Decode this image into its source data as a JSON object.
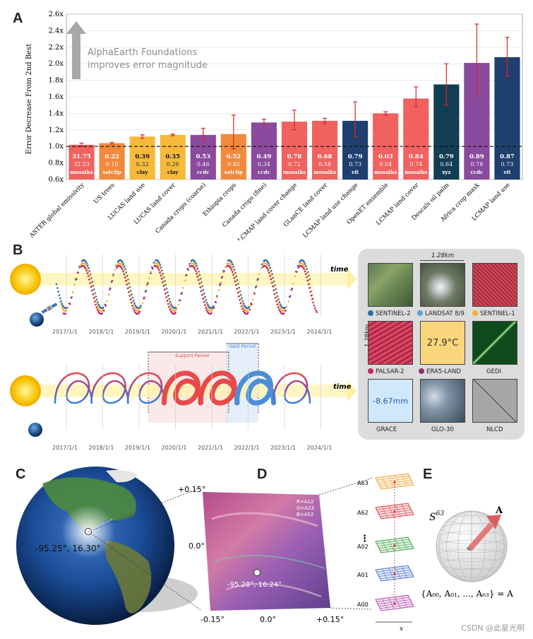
{
  "panels": {
    "a": "A",
    "b": "B",
    "c": "C",
    "d": "D",
    "e": "E"
  },
  "chart_data": {
    "type": "bar",
    "ylabel": "Error Decrease From 2nd Best",
    "ylim": [
      0.6,
      2.6
    ],
    "yticks": [
      "0.6x",
      "0.8x",
      "1.0x",
      "1.2x",
      "1.4x",
      "1.6x",
      "1.8x",
      "2.0x",
      "2.2x",
      "2.4x",
      "2.6x"
    ],
    "reference_line": 1.0,
    "annotation": [
      "AlphaEarth Foundations",
      "improves error magnitude"
    ],
    "categories": [
      "ASTER global emissivity",
      "US trees",
      "LUCAS land use",
      "LUCAS land cover",
      "Canada crops (coarse)",
      "Ethiopia crops",
      "Canada crops (fine)",
      "LCMAP land cover change",
      "GLanCE land cover",
      "LCMAP land use change",
      "OpenET ensemble",
      "LCMAP land cover",
      "Descals oil palm",
      "Africa crop mask",
      "LCMAP land use"
    ],
    "values": [
      1.02,
      1.04,
      1.12,
      1.14,
      1.14,
      1.15,
      1.29,
      1.3,
      1.31,
      1.31,
      1.4,
      1.58,
      1.75,
      2.01,
      2.08
    ],
    "error_low": [
      1.0,
      1.03,
      1.1,
      1.13,
      1.08,
      0.97,
      1.26,
      1.2,
      1.28,
      1.12,
      1.38,
      1.48,
      1.5,
      1.61,
      1.85
    ],
    "error_high": [
      1.04,
      1.05,
      1.14,
      1.15,
      1.22,
      1.38,
      1.33,
      1.44,
      1.34,
      1.54,
      1.42,
      1.72,
      2.0,
      2.48,
      2.32
    ],
    "bar_colors": [
      "#ef6260",
      "#f08a3c",
      "#f6b93b",
      "#f6b93b",
      "#8a4a9e",
      "#f08a3c",
      "#8a4a9e",
      "#ef6260",
      "#ef6260",
      "#1f3f6e",
      "#ef6260",
      "#ef6260",
      "#123d52",
      "#8a4a9e",
      "#1f3f6e"
    ],
    "labels_top": [
      "31.75",
      "0.22",
      "0.39",
      "0.35",
      "0.53",
      "0.52",
      "0.49",
      "0.78",
      "0.68",
      "0.79",
      "0.03",
      "0.84",
      "0.79",
      "0.89",
      "0.87"
    ],
    "labels_bottom": [
      "32.53",
      "0.18",
      "0.32",
      "0.26",
      "0.46",
      "0.45",
      "0.34",
      "0.72",
      "0.58",
      "0.73",
      "0.04",
      "0.74",
      "0.64",
      "0.78",
      "0.73"
    ],
    "labels_method": [
      "mosaiks",
      "satclip",
      "clay",
      "clay",
      "ccdc",
      "satclip",
      "ccdc",
      "mosaiks",
      "mosaiks",
      "vit",
      "mosaiks",
      "mosaiks",
      "xyz",
      "ccdc",
      "vit"
    ]
  },
  "timeline": {
    "years": [
      "2017/1/1",
      "2018/1/1",
      "2019/1/1",
      "2020/1/1",
      "2021/1/1",
      "2022/1/1",
      "2023/1/1",
      "2024/1/1"
    ],
    "time_label": "time",
    "support_period": "Support Period",
    "valid_period": "Valid Period"
  },
  "tiles": {
    "scale_top": "1.28km",
    "scale_side": "1.28km",
    "sources": [
      {
        "name": "SENTINEL-2",
        "color": "#2b6ca3"
      },
      {
        "name": "LANDSAT 8/9",
        "color": "#5aa0d8"
      },
      {
        "name": "SENTINEL-1",
        "color": "#f2b233"
      },
      {
        "name": "PALSAR-2",
        "color": "#c9245a"
      },
      {
        "name": "ERA5-LAND",
        "color": "#8e2f6e"
      },
      {
        "name": "GEDI",
        "color": ""
      },
      {
        "name": "GRACE",
        "color": ""
      },
      {
        "name": "GLO-30",
        "color": ""
      },
      {
        "name": "NLCD",
        "color": ""
      }
    ],
    "era5_value": "27.9°C",
    "grace_value": "-8.67mm"
  },
  "globe": {
    "coord": "-95.25°, 16.30°"
  },
  "map": {
    "top": "+0.15°",
    "mid": "0.0°",
    "x_left": "-0.15°",
    "x_mid": "0.0°",
    "x_right": "+0.15°",
    "coord": "-95.28°, 16.24°",
    "rgb": [
      "R=A12",
      "G=A23",
      "B=A52"
    ]
  },
  "layers": {
    "labels": [
      "A63",
      "A62",
      "A02",
      "A01",
      "A00"
    ],
    "ellipsis": "⋮",
    "x_axis": "x"
  },
  "sphere": {
    "name": "S",
    "dim": "63",
    "vector": "A",
    "formula": "{A₀₀, A₀₁, ..., A₆₃} = A"
  },
  "watermark": "CSDN @此星光明"
}
